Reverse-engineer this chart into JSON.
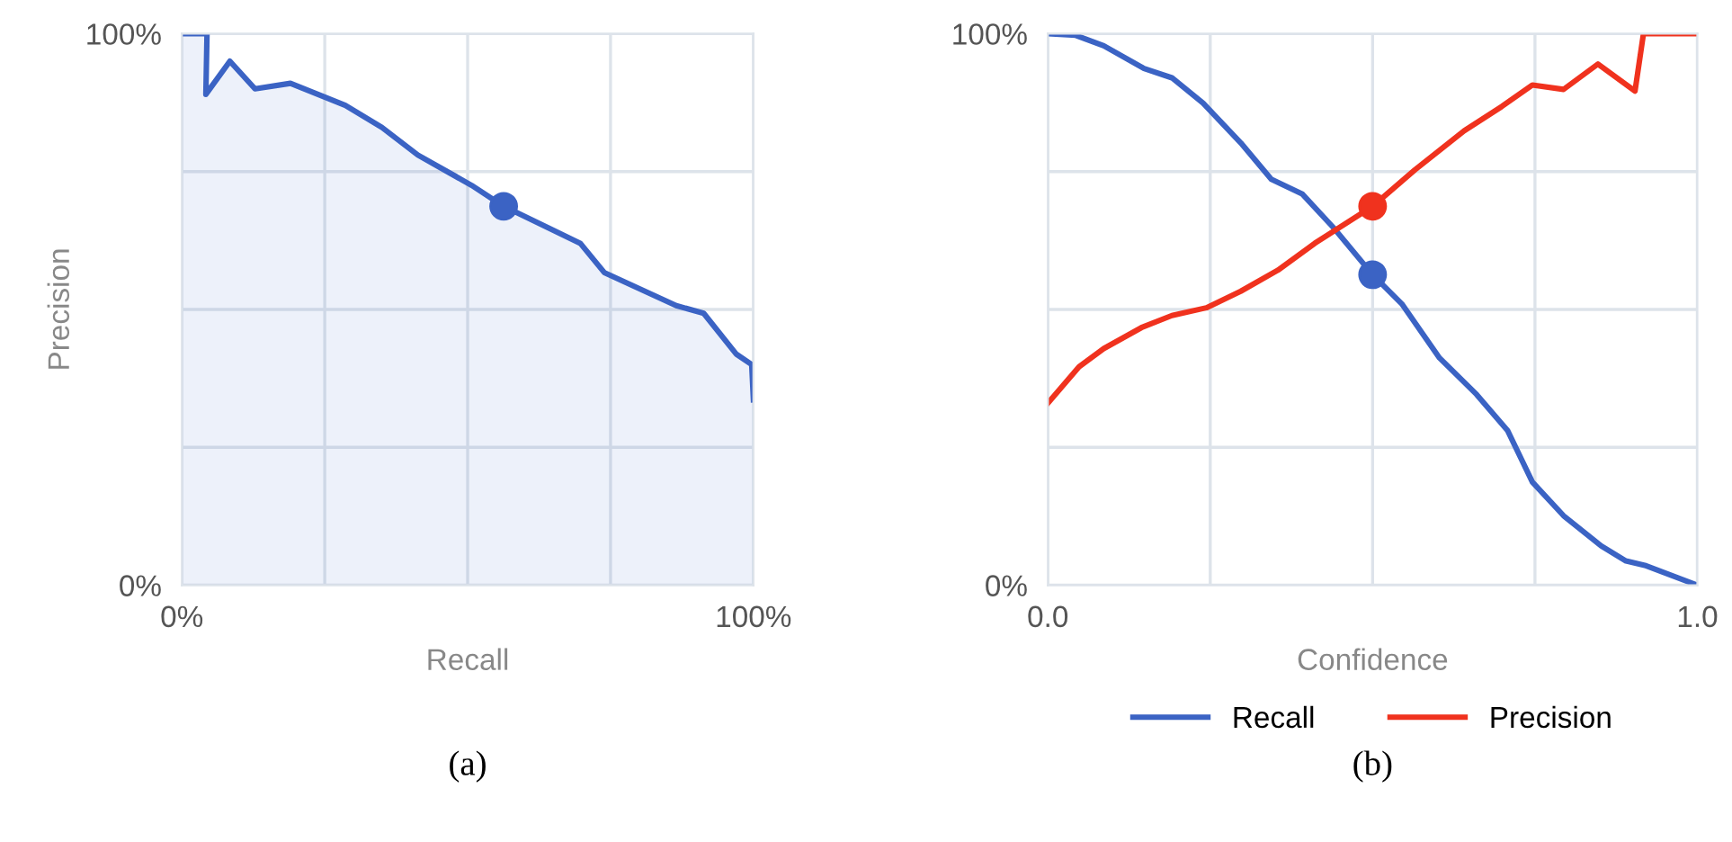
{
  "chart_data": [
    {
      "type": "area",
      "xlabel": "Recall",
      "ylabel": "Precision",
      "annotations": [
        "(a)"
      ],
      "xlim": [
        0,
        100
      ],
      "ylim": [
        0,
        100
      ],
      "xticks": [
        {
          "value": 0,
          "label": "0%"
        },
        {
          "value": 25,
          "label": null
        },
        {
          "value": 50,
          "label": null
        },
        {
          "value": 75,
          "label": null
        },
        {
          "value": 100,
          "label": "100%"
        }
      ],
      "yticks": [
        {
          "value": 0,
          "label": "0%"
        },
        {
          "value": 25,
          "label": null
        },
        {
          "value": 50,
          "label": null
        },
        {
          "value": 75,
          "label": null
        },
        {
          "value": 100,
          "label": "100%"
        }
      ],
      "grid": true,
      "legend": false,
      "series": [
        {
          "color": "#3b63c4",
          "x": [
            0,
            4.4,
            4.2,
            8.4,
            12.8,
            19,
            28.6,
            35,
            41.3,
            50.7,
            56.3,
            69.7,
            73.9,
            86.5,
            91.3,
            97,
            99.7,
            100
          ],
          "values": [
            100,
            100,
            89,
            95,
            90,
            91,
            87,
            83,
            78,
            72.5,
            68.7,
            62,
            56.7,
            50.7,
            49.3,
            41.9,
            40,
            33.6
          ]
        },
        {
          "type": "scatter",
          "color": "#3b63c4",
          "marker": "circle",
          "x": [
            56.3
          ],
          "values": [
            68.7
          ]
        }
      ]
    },
    {
      "type": "line",
      "xlabel": "Confidence",
      "annotations": [
        "(b)"
      ],
      "xlim": [
        0,
        1
      ],
      "ylim": [
        0,
        100
      ],
      "xticks": [
        {
          "value": 0,
          "label": "0.0"
        },
        {
          "value": 0.25,
          "label": null
        },
        {
          "value": 0.5,
          "label": null
        },
        {
          "value": 0.75,
          "label": null
        },
        {
          "value": 1,
          "label": "1.0"
        }
      ],
      "yticks": [
        {
          "value": 0,
          "label": "0%"
        },
        {
          "value": 25,
          "label": null
        },
        {
          "value": 50,
          "label": null
        },
        {
          "value": 75,
          "label": null
        },
        {
          "value": 100,
          "label": "100%"
        }
      ],
      "grid": true,
      "legend": "bottom",
      "series": [
        {
          "name": "Recall",
          "color": "#3b63c4",
          "x": [
            0,
            0.043,
            0.086,
            0.148,
            0.191,
            0.239,
            0.297,
            0.344,
            0.392,
            0.44,
            0.5,
            0.545,
            0.603,
            0.66,
            0.708,
            0.746,
            0.794,
            0.852,
            0.89,
            0.919,
            1
          ],
          "values": [
            100,
            99.7,
            97.8,
            93.7,
            92,
            87.4,
            80.2,
            73.6,
            70.9,
            64.8,
            56.3,
            51,
            41.2,
            34.6,
            28,
            18.7,
            12.6,
            7.1,
            4.4,
            3.6,
            0
          ]
        },
        {
          "name": "Precision",
          "color": "#f0321e",
          "x": [
            0,
            0.048,
            0.086,
            0.144,
            0.191,
            0.244,
            0.297,
            0.354,
            0.411,
            0.5,
            0.565,
            0.641,
            0.699,
            0.746,
            0.794,
            0.847,
            0.904,
            0.917,
            1
          ],
          "values": [
            33,
            39.6,
            42.9,
            46.7,
            48.9,
            50.3,
            53.3,
            57.1,
            62,
            68.7,
            75.3,
            82.4,
            86.8,
            90.7,
            89.9,
            94.5,
            89.6,
            100,
            100
          ]
        },
        {
          "type": "scatter",
          "color": "#3b63c4",
          "marker": "circle",
          "x": [
            0.5
          ],
          "values": [
            56.3
          ]
        },
        {
          "type": "scatter",
          "color": "#f0321e",
          "marker": "circle",
          "x": [
            0.5
          ],
          "values": [
            68.7
          ]
        }
      ]
    }
  ]
}
